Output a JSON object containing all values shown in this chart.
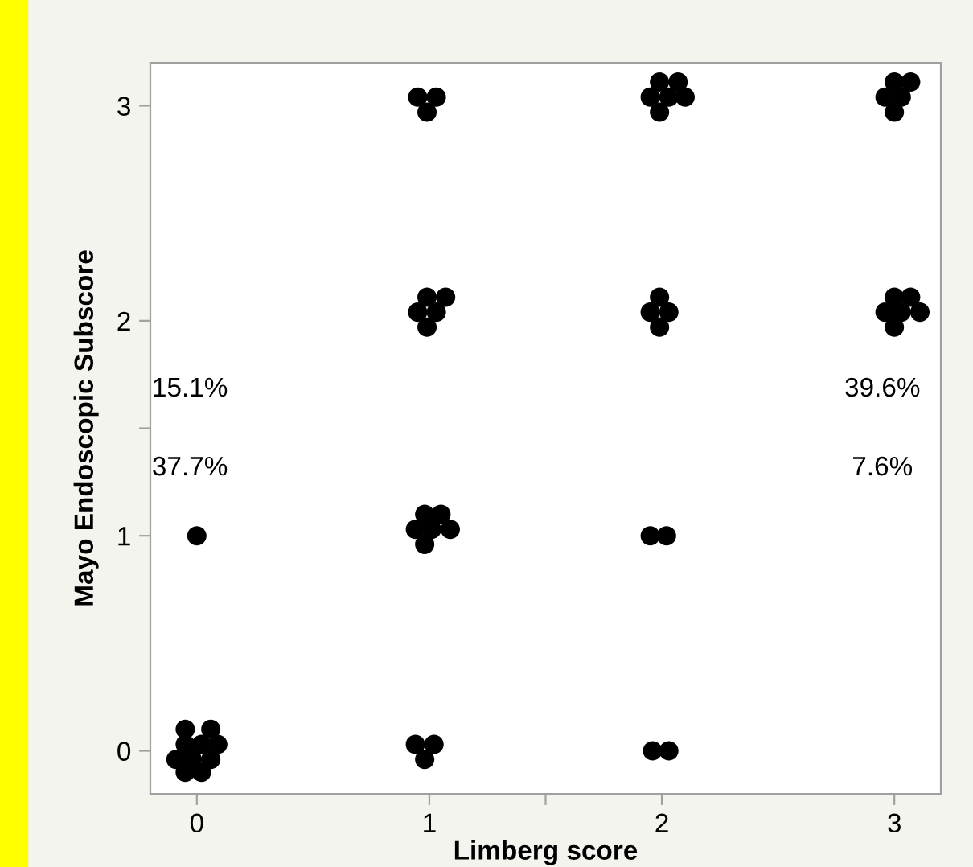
{
  "chart_data": {
    "type": "scatter",
    "xlabel": "Limberg score",
    "ylabel": "Mayo Endoscopic Subscore",
    "series": [
      {
        "color": "#000000",
        "x": [
          -0.05,
          0.06,
          0.02,
          -0.05,
          0.09,
          -0.09,
          -0.02,
          0.06,
          -0.05,
          0.02,
          0.94,
          1.02,
          0.98,
          1.96,
          2.03,
          0.0,
          0.98,
          1.05,
          0.94,
          1.01,
          1.09,
          0.98,
          1.95,
          2.02,
          0.95,
          1.03,
          0.99,
          1.99,
          2.07,
          1.95,
          2.03,
          2.1,
          1.99,
          3.0,
          3.07,
          2.96,
          3.03,
          3.0,
          0.99,
          1.07,
          0.95,
          1.03,
          0.99,
          1.99,
          1.95,
          2.03,
          1.99,
          3.0,
          3.07,
          2.96,
          3.03,
          3.11,
          3.0
        ],
        "values": [
          0.1,
          0.1,
          0.03,
          0.03,
          0.03,
          -0.04,
          -0.04,
          -0.04,
          -0.1,
          -0.1,
          0.03,
          0.03,
          -0.04,
          0.0,
          0.0,
          1.0,
          1.1,
          1.1,
          1.03,
          1.03,
          1.03,
          0.96,
          1.0,
          1.0,
          3.04,
          3.04,
          2.97,
          3.11,
          3.11,
          3.04,
          3.04,
          3.04,
          2.97,
          3.11,
          3.11,
          3.04,
          3.04,
          2.97,
          2.11,
          2.11,
          2.04,
          2.04,
          1.97,
          2.11,
          2.04,
          2.04,
          1.97,
          2.11,
          2.11,
          2.04,
          2.04,
          2.04,
          1.97
        ]
      }
    ],
    "marker": "circle",
    "grid": false,
    "legend": false,
    "xlim": [
      -0.2,
      3.2
    ],
    "ylim": [
      -0.2,
      3.2
    ],
    "xticks": [
      0,
      1,
      {
        "value": 1.5,
        "label": null
      },
      2,
      3
    ],
    "yticks": [
      0,
      1,
      {
        "value": 1.5,
        "label": null
      },
      2,
      3
    ],
    "annotations": [
      "15.1%",
      "37.7%",
      "39.6%",
      "7.6%"
    ]
  }
}
